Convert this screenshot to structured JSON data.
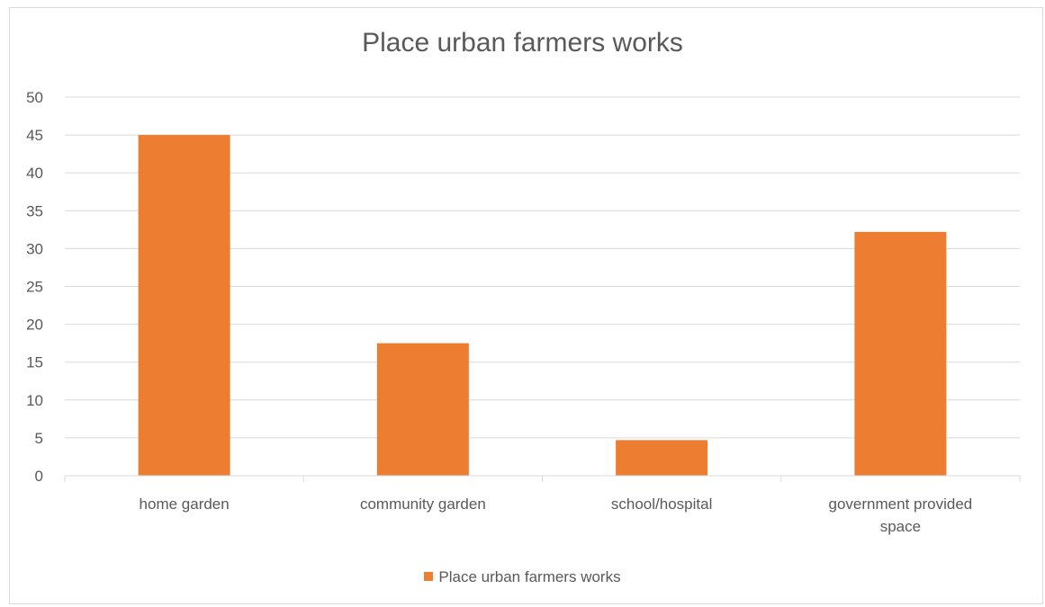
{
  "chart_data": {
    "type": "bar",
    "title": "Place urban farmers works",
    "categories": [
      "home garden",
      "community garden",
      "school/hospital",
      "government provided space"
    ],
    "category_lines": [
      [
        "home garden"
      ],
      [
        "community garden"
      ],
      [
        "school/hospital"
      ],
      [
        "government provided",
        "space"
      ]
    ],
    "series": [
      {
        "name": "Place urban farmers works",
        "values": [
          45,
          17.5,
          4.7,
          32.2
        ],
        "color": "#ed7d31"
      }
    ],
    "ylim": [
      0,
      50
    ],
    "yticks": [
      0,
      5,
      10,
      15,
      20,
      25,
      30,
      35,
      40,
      45,
      50
    ],
    "grid": true,
    "legend_position": "bottom",
    "colors": {
      "gridline": "#d9d9d9",
      "text": "#595959"
    }
  }
}
